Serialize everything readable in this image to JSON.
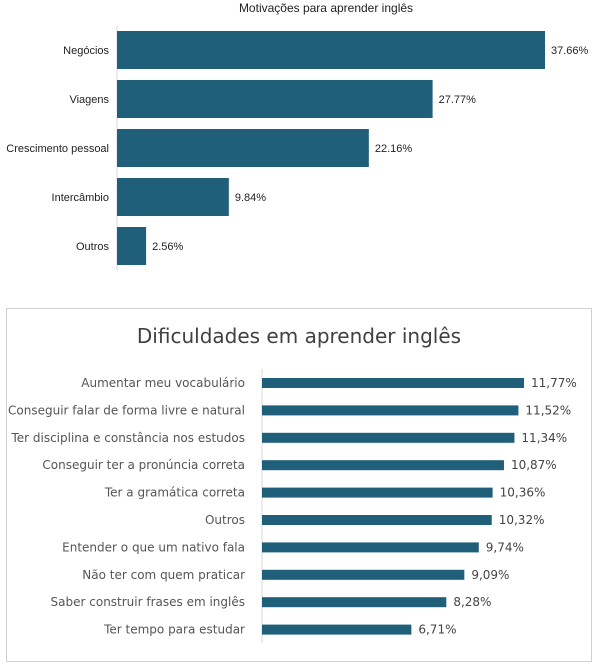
{
  "chart_data": [
    {
      "type": "bar",
      "orientation": "horizontal",
      "title": "Motivações para aprender inglês",
      "categories": [
        "Negócios",
        "Viagens",
        "Crescimento pessoal",
        "Intercâmbio",
        "Outros"
      ],
      "values": [
        37.66,
        27.77,
        22.16,
        9.84,
        2.56
      ],
      "value_labels": [
        "37.66%",
        "27.77%",
        "22.16%",
        "9.84%",
        "2.56%"
      ],
      "xlabel": "",
      "ylabel": "",
      "xlim": [
        0,
        37.66
      ],
      "grid": false,
      "bar_color": "#1f5f7a"
    },
    {
      "type": "bar",
      "orientation": "horizontal",
      "title": "Dificuldades em aprender inglês",
      "categories": [
        "Aumentar meu vocabulário",
        "Conseguir falar de forma livre e natural",
        "Ter disciplina e constância nos estudos",
        "Conseguir ter a pronúncia correta",
        "Ter a gramática correta",
        "Outros",
        "Entender o que um nativo fala",
        "Não ter com quem praticar",
        "Saber construir frases em inglês",
        "Ter tempo para estudar"
      ],
      "values": [
        11.77,
        11.52,
        11.34,
        10.87,
        10.36,
        10.32,
        9.74,
        9.09,
        8.28,
        6.71
      ],
      "value_labels": [
        "11,77%",
        "11,52%",
        "11,34%",
        "10,87%",
        "10,36%",
        "10,32%",
        "9,74%",
        "9,09%",
        "8,28%",
        "6,71%"
      ],
      "xlabel": "",
      "ylabel": "",
      "xlim": [
        0,
        11.77
      ],
      "grid": false,
      "bar_color": "#1f5f7a"
    }
  ]
}
